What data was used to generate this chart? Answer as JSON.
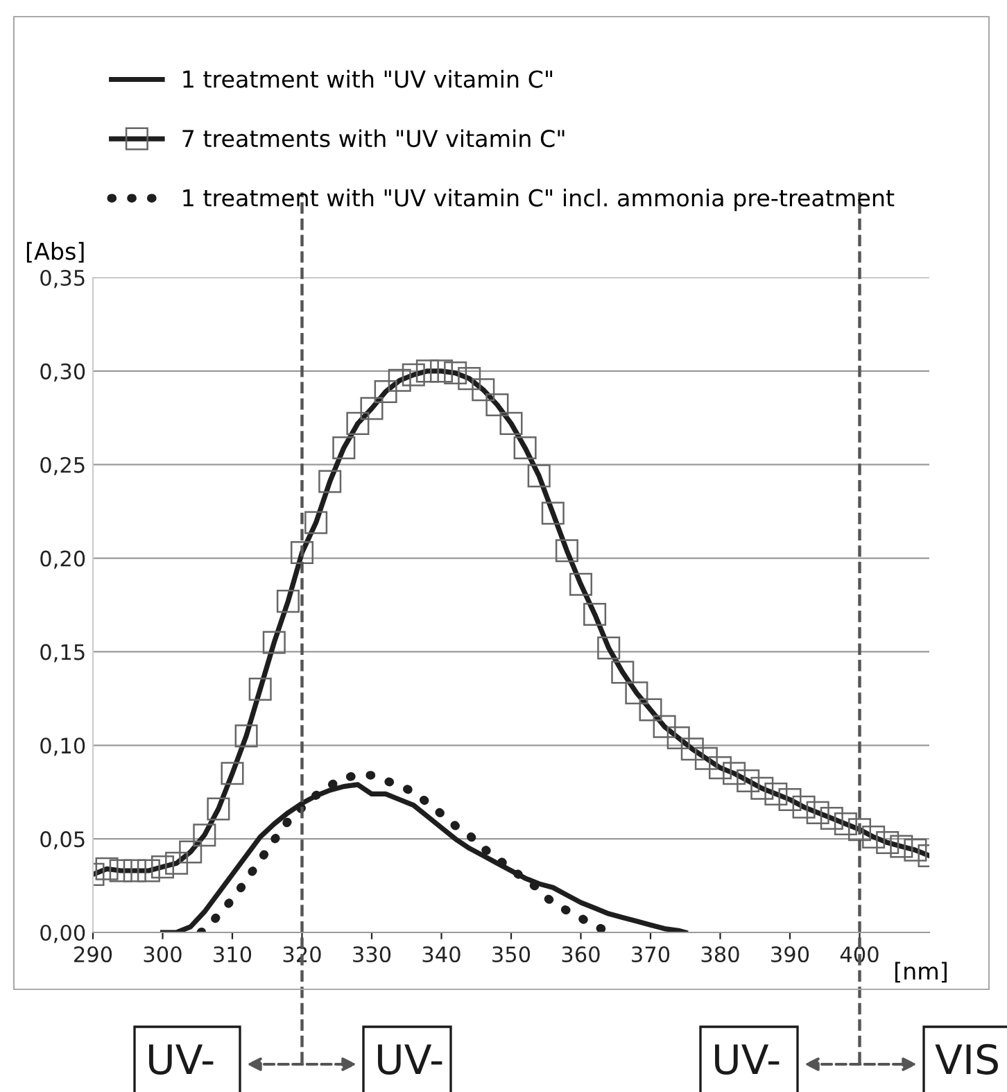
{
  "chart_data": {
    "type": "line",
    "ylabel": "[Abs]",
    "xlabel": "[nm]",
    "xlim": [
      290,
      410
    ],
    "xticks": [
      290,
      300,
      310,
      320,
      330,
      340,
      350,
      360,
      370,
      380,
      390,
      400
    ],
    "ylim": [
      0,
      0.35
    ],
    "yticks": [
      {
        "value": 0,
        "label": "0,00"
      },
      {
        "value": 0.05,
        "label": "0,05"
      },
      {
        "value": 0.1,
        "label": "0,10"
      },
      {
        "value": 0.15,
        "label": "0,15"
      },
      {
        "value": 0.2,
        "label": "0,20"
      },
      {
        "value": 0.25,
        "label": "0,25"
      },
      {
        "value": 0.3,
        "label": "0,30"
      },
      {
        "value": 0.35,
        "label": "0,35"
      }
    ],
    "grid": "y",
    "legend": "top",
    "ref_lines": [
      {
        "axis": "x",
        "value": 320,
        "color": "#555555",
        "line_style": "dashed"
      },
      {
        "axis": "x",
        "value": 400,
        "color": "#555555",
        "line_style": "dashed"
      }
    ],
    "annotations": [
      "UV-",
      "UV-",
      "UV-",
      "VIS"
    ],
    "series": [
      {
        "name": "1 treatment with \"UV vitamin C\"",
        "color": "#1e1e1e",
        "marker": "none",
        "line_style": "solid",
        "x": [
          300,
          302,
          304,
          306,
          308,
          310,
          312,
          314,
          316,
          318,
          320,
          322,
          324,
          326,
          328,
          330,
          332,
          334,
          336,
          338,
          340,
          342,
          344,
          346,
          348,
          350,
          352,
          354,
          356,
          358,
          360,
          362,
          364,
          366,
          368,
          370,
          372,
          374,
          375
        ],
        "values": [
          0.0,
          0.0,
          0.003,
          0.011,
          0.021,
          0.031,
          0.041,
          0.051,
          0.058,
          0.064,
          0.069,
          0.073,
          0.076,
          0.078,
          0.079,
          0.074,
          0.074,
          0.071,
          0.068,
          0.062,
          0.056,
          0.05,
          0.045,
          0.041,
          0.037,
          0.033,
          0.029,
          0.026,
          0.024,
          0.02,
          0.016,
          0.013,
          0.01,
          0.008,
          0.006,
          0.004,
          0.002,
          0.001,
          0.0
        ]
      },
      {
        "name": "7 treatments with \"UV vitamin C\"",
        "color": "#1e1e1e",
        "marker": "square",
        "line_style": "solid",
        "x": [
          290,
          292,
          294,
          296,
          298,
          300,
          302,
          304,
          306,
          308,
          310,
          312,
          314,
          316,
          318,
          320,
          322,
          324,
          326,
          328,
          330,
          332,
          334,
          336,
          338,
          340,
          342,
          344,
          346,
          348,
          350,
          352,
          354,
          356,
          358,
          360,
          362,
          364,
          366,
          368,
          370,
          372,
          374,
          376,
          378,
          380,
          382,
          384,
          386,
          388,
          390,
          392,
          394,
          396,
          398,
          400,
          402,
          404,
          406,
          408,
          410
        ],
        "values": [
          0.031,
          0.034,
          0.033,
          0.033,
          0.033,
          0.035,
          0.037,
          0.043,
          0.052,
          0.066,
          0.085,
          0.105,
          0.13,
          0.155,
          0.177,
          0.203,
          0.219,
          0.241,
          0.259,
          0.272,
          0.28,
          0.289,
          0.295,
          0.298,
          0.3,
          0.3,
          0.299,
          0.296,
          0.29,
          0.282,
          0.272,
          0.259,
          0.244,
          0.224,
          0.204,
          0.186,
          0.17,
          0.152,
          0.139,
          0.128,
          0.119,
          0.11,
          0.104,
          0.098,
          0.093,
          0.088,
          0.085,
          0.081,
          0.077,
          0.074,
          0.071,
          0.067,
          0.064,
          0.061,
          0.058,
          0.055,
          0.051,
          0.048,
          0.046,
          0.044,
          0.041
        ]
      },
      {
        "name": "1 treatment with \"UV vitamin C\" incl. ammonia pre-treatment",
        "color": "#1e1e1e",
        "marker": "none",
        "line_style": "dotted",
        "x": [
          305.5,
          307.2,
          308.9,
          310.5,
          312.2,
          313.5,
          315.2,
          316.5,
          318.1,
          319.8,
          321.5,
          323.5,
          325.5,
          327.8,
          330.1,
          332.1,
          334.4,
          336.4,
          338.4,
          340.1,
          342,
          344,
          345.7,
          347.7,
          349.7,
          351.7,
          353.7,
          355.3,
          357.3,
          359.5,
          361.6,
          363.6
        ],
        "values": [
          0.0,
          0.006,
          0.013,
          0.02,
          0.029,
          0.036,
          0.045,
          0.052,
          0.06,
          0.066,
          0.072,
          0.077,
          0.082,
          0.084,
          0.084,
          0.081,
          0.078,
          0.074,
          0.068,
          0.063,
          0.057,
          0.052,
          0.046,
          0.04,
          0.035,
          0.029,
          0.024,
          0.018,
          0.013,
          0.009,
          0.004,
          0.001
        ]
      }
    ]
  }
}
